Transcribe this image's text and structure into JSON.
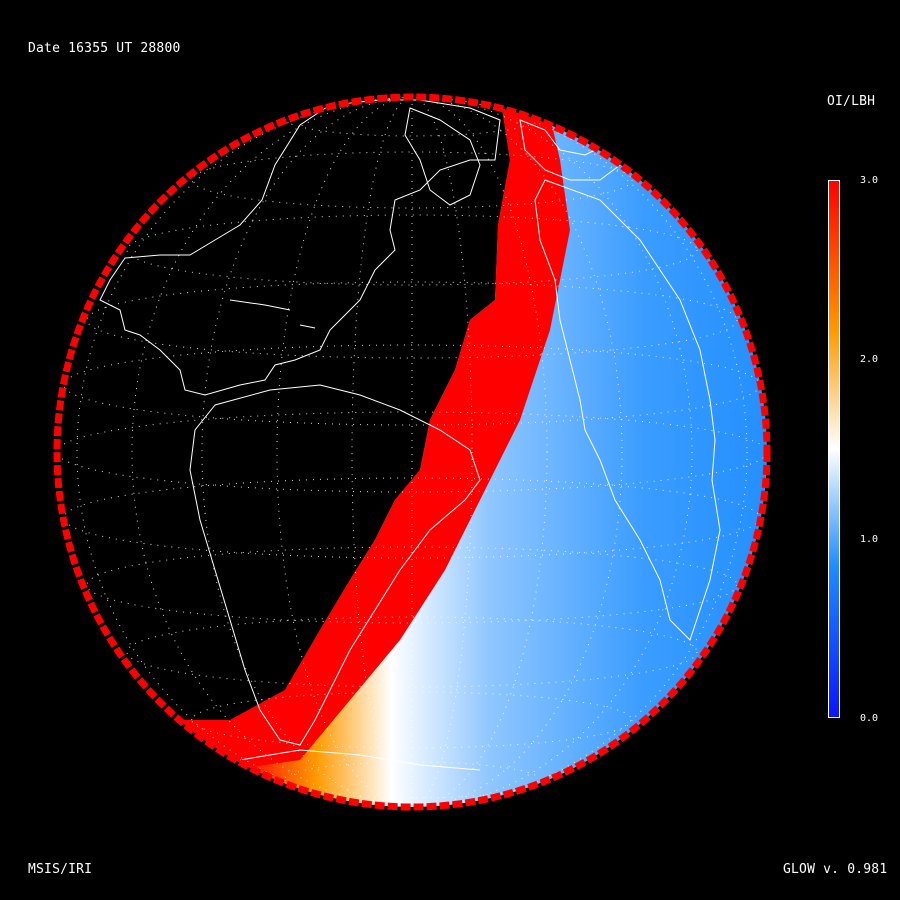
{
  "header": {
    "date_text": "Date 16355  UT 28800"
  },
  "colorbar": {
    "title": "OI/LBH",
    "ticks": [
      "3.0",
      "2.0",
      "1.0",
      "0.0"
    ],
    "range": [
      0.0,
      3.0
    ],
    "colors": {
      "low": "#0a14ff",
      "mid_low": "#1e8cff",
      "mid": "#ffffff",
      "mid_high": "#ff9a00",
      "high": "#ff0000"
    }
  },
  "footer": {
    "model_text": "MSIS/IRI",
    "version_text": "GLOW v. 0.981"
  },
  "map": {
    "projection": "orthographic",
    "background": "#000000",
    "night_side": "black",
    "grid": "dotted white lat/lon lines",
    "coastlines": "white"
  }
}
